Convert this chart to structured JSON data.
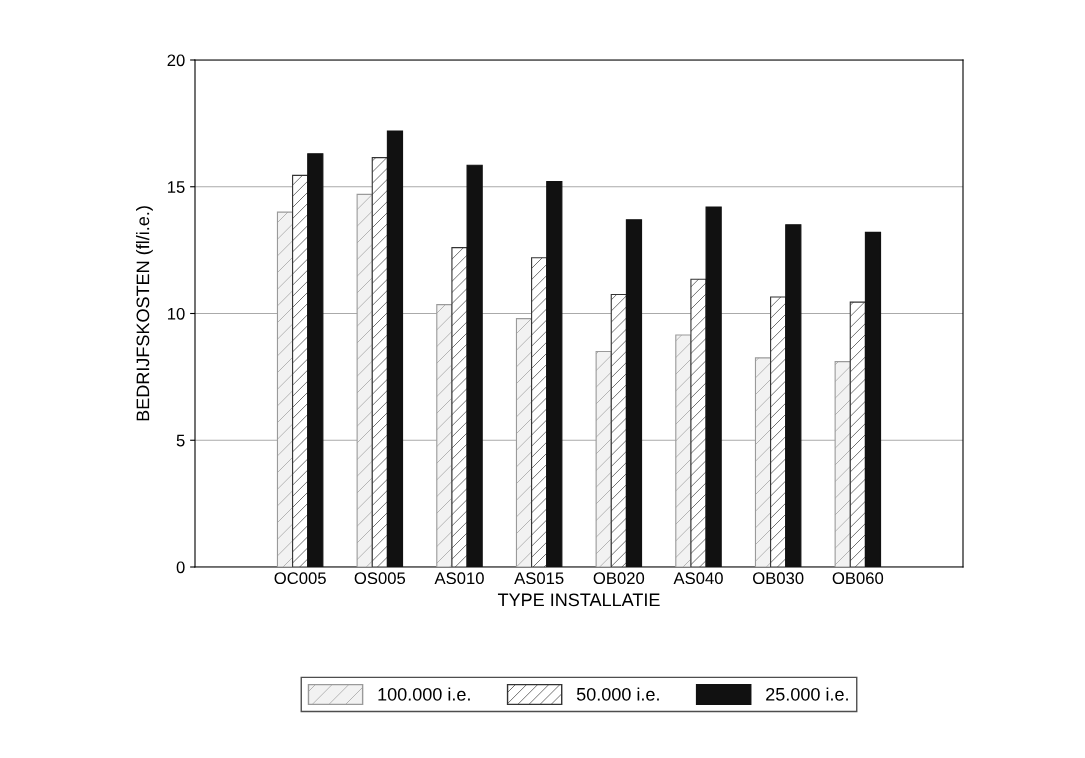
{
  "chart_data": {
    "type": "bar",
    "xlabel": "TYPE INSTALLATIE",
    "ylabel": "BEDRIJFSKOSTEN (fl/i.e.)",
    "categories": [
      "OC005",
      "OS005",
      "AS010",
      "AS015",
      "OB020",
      "AS040",
      "OB030",
      "OB060"
    ],
    "series": [
      {
        "name": "100.000 i.e.",
        "color": "#9a9a9a",
        "values": [
          14.0,
          14.7,
          10.35,
          9.8,
          8.5,
          9.15,
          8.25,
          8.1
        ]
      },
      {
        "name": "50.000 i.e.",
        "color": "#333333",
        "values": [
          15.45,
          16.15,
          12.6,
          12.2,
          10.75,
          11.35,
          10.65,
          10.45
        ]
      },
      {
        "name": "25.000 i.e.",
        "color": "#111111",
        "values": [
          16.3,
          17.2,
          15.85,
          15.2,
          13.7,
          14.2,
          13.5,
          13.2
        ]
      }
    ],
    "ylim": [
      0,
      20
    ],
    "yticks": [
      0,
      5,
      10,
      15,
      20
    ],
    "grid": "y",
    "legend": "bottom"
  }
}
